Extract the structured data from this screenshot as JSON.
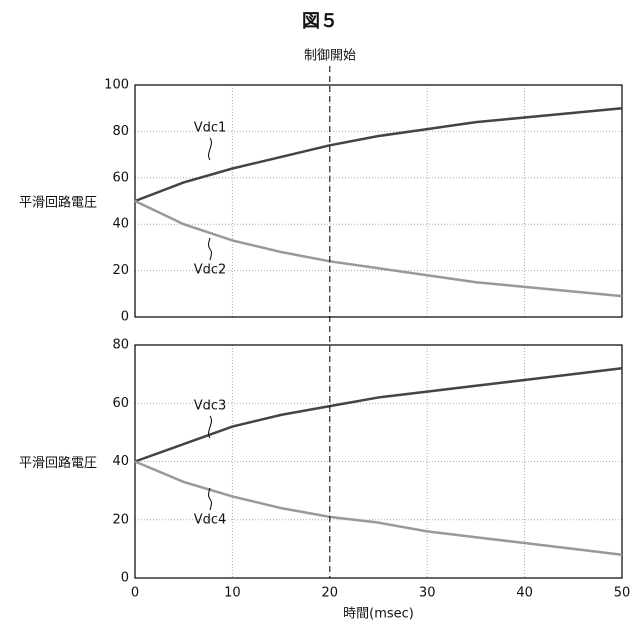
{
  "chart_data": [
    {
      "type": "line",
      "title": "図５",
      "annotation": {
        "text": "制御開始",
        "x": 20
      },
      "ylabel": "平滑回路電圧",
      "x": [
        0,
        5,
        10,
        15,
        20,
        25,
        30,
        35,
        40,
        45,
        50
      ],
      "series": [
        {
          "name": "Vdc1",
          "color": "#444444",
          "values": [
            50,
            58,
            64,
            69,
            74,
            78,
            81,
            84,
            86,
            88,
            90
          ]
        },
        {
          "name": "Vdc2",
          "color": "#999999",
          "values": [
            50,
            40,
            33,
            28,
            24,
            21,
            18,
            15,
            13,
            11,
            9
          ]
        }
      ],
      "xlim": [
        0,
        50
      ],
      "xticks": [
        0,
        10,
        20,
        30,
        40,
        50
      ],
      "ylim": [
        0,
        100
      ],
      "yticks": [
        0,
        20,
        40,
        60,
        80,
        100
      ],
      "grid": true
    },
    {
      "type": "line",
      "ylabel": "平滑回路電圧",
      "xlabel": "時間(msec)",
      "x": [
        0,
        5,
        10,
        15,
        20,
        25,
        30,
        35,
        40,
        45,
        50
      ],
      "series": [
        {
          "name": "Vdc3",
          "color": "#444444",
          "values": [
            40,
            46,
            52,
            56,
            59,
            62,
            64,
            66,
            68,
            70,
            72
          ]
        },
        {
          "name": "Vdc4",
          "color": "#999999",
          "values": [
            40,
            33,
            28,
            24,
            21,
            19,
            16,
            14,
            12,
            10,
            8
          ]
        }
      ],
      "xlim": [
        0,
        50
      ],
      "xticks": [
        0,
        10,
        20,
        30,
        40,
        50
      ],
      "ylim": [
        0,
        80
      ],
      "yticks": [
        0,
        20,
        40,
        60,
        80
      ],
      "grid": true
    }
  ]
}
